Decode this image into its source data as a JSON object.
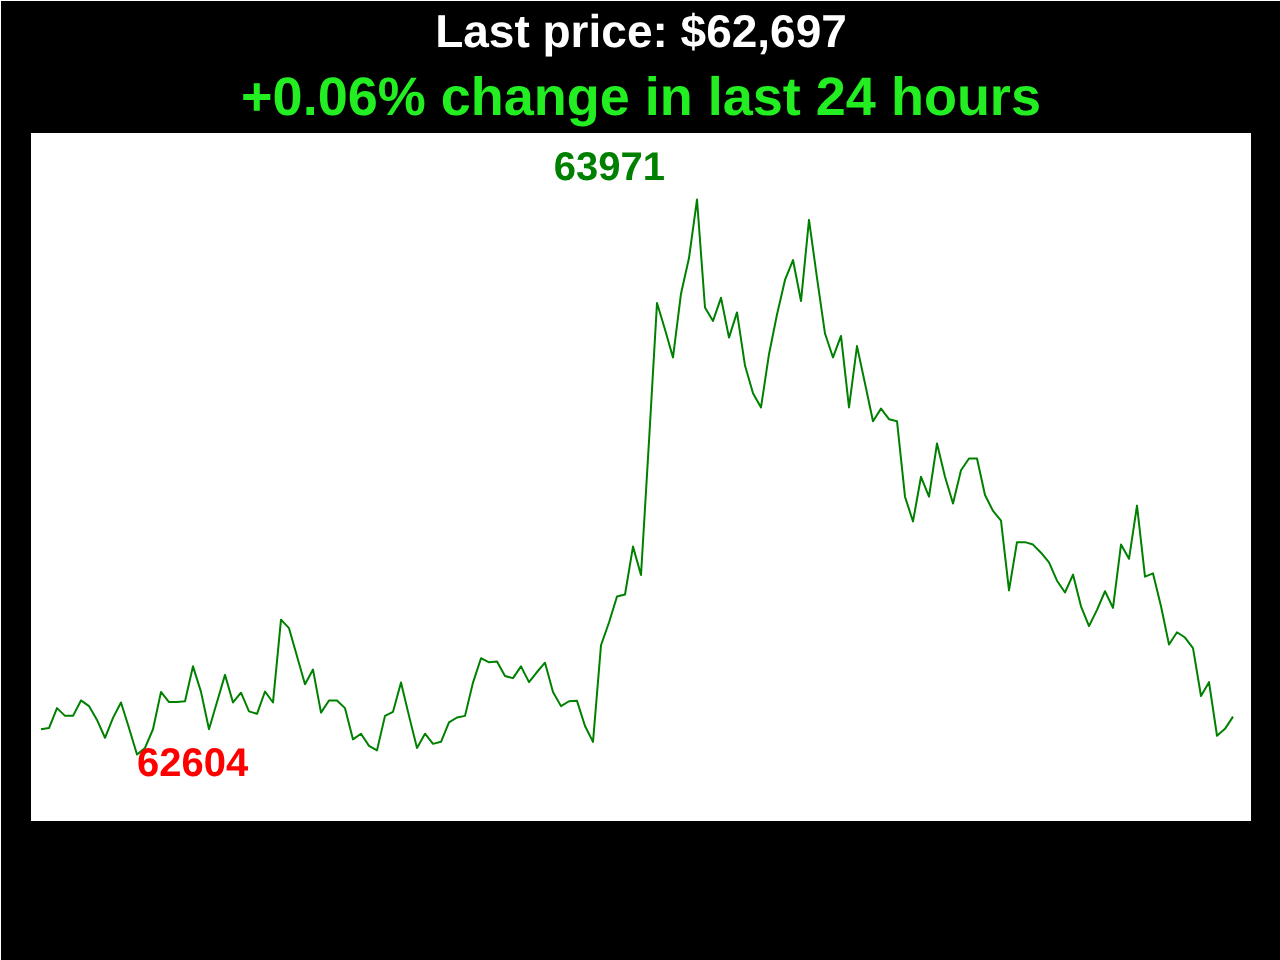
{
  "chart_data": {
    "type": "line",
    "title": "Last price: $62,697",
    "subtitle": "+0.06% change in last 24 hours",
    "categories": [
      null,
      null,
      null,
      null,
      null,
      null,
      null,
      null,
      null,
      null,
      null,
      null,
      null,
      null,
      null,
      null,
      null,
      null,
      null,
      null,
      null,
      null,
      null,
      null,
      null,
      null,
      null,
      null,
      null,
      null,
      null,
      null,
      null,
      null,
      null,
      null,
      null,
      null,
      null,
      null,
      null,
      null,
      null,
      null,
      null,
      null,
      null,
      null,
      null,
      null,
      null,
      null,
      null,
      null,
      null,
      null,
      null,
      null,
      null,
      null,
      null,
      null,
      null,
      null,
      null,
      null,
      null,
      null,
      null,
      null,
      null,
      null,
      null,
      null,
      null,
      null,
      null,
      null,
      null,
      null,
      null,
      null,
      null,
      null,
      null,
      null,
      null,
      null,
      null,
      null,
      null,
      null,
      null,
      null,
      null,
      null,
      null,
      null,
      null,
      null,
      null,
      null,
      null,
      null,
      null,
      null,
      null,
      null,
      null,
      null,
      null,
      null,
      null,
      null,
      null,
      null,
      null,
      null,
      null,
      null,
      null,
      null,
      null,
      null,
      null,
      null,
      null,
      null,
      null,
      null,
      null,
      null,
      null,
      null,
      null,
      null,
      null,
      null,
      null,
      null,
      null,
      null,
      null,
      null,
      null,
      null,
      null,
      null,
      null,
      null
    ],
    "color": "#008000",
    "values": [
      62666,
      62669,
      62718,
      62699,
      62699,
      62737,
      62723,
      62689,
      62645,
      62694,
      62732,
      62669,
      62604,
      62620,
      62666,
      62758,
      62733,
      62733,
      62735,
      62821,
      62758,
      62666,
      62733,
      62800,
      62732,
      62756,
      62710,
      62704,
      62759,
      62732,
      62936,
      62915,
      62846,
      62777,
      62813,
      62707,
      62737,
      62737,
      62718,
      62641,
      62655,
      62625,
      62614,
      62699,
      62709,
      62781,
      62699,
      62620,
      62655,
      62630,
      62635,
      62683,
      62695,
      62699,
      62781,
      62841,
      62831,
      62833,
      62797,
      62792,
      62821,
      62782,
      62807,
      62830,
      62758,
      62723,
      62735,
      62736,
      62674,
      62635,
      62873,
      62929,
      62993,
      62998,
      63116,
      63046,
      63376,
      63716,
      63651,
      63582,
      63739,
      63827,
      63971,
      63705,
      63672,
      63729,
      63631,
      63693,
      63562,
      63494,
      63459,
      63590,
      63688,
      63773,
      63822,
      63721,
      63921,
      63778,
      63641,
      63582,
      63635,
      63459,
      63610,
      63518,
      63425,
      63456,
      63430,
      63425,
      63239,
      63178,
      63288,
      63239,
      63370,
      63288,
      63222,
      63304,
      63333,
      63333,
      63243,
      63204,
      63180,
      63008,
      63127,
      63127,
      63121,
      63101,
      63077,
      63032,
      63003,
      63047,
      62969,
      62920,
      62960,
      63006,
      62965,
      63121,
      63086,
      63217,
      63042,
      63050,
      62969,
      62875,
      62905,
      62892,
      62866,
      62748,
      62782,
      62650,
      62667,
      62697
    ],
    "value_labels": [
      null,
      null,
      null,
      null,
      null,
      null,
      null,
      null,
      null,
      null,
      null,
      null,
      "62604",
      null,
      null,
      null,
      null,
      null,
      null,
      null,
      null,
      null,
      null,
      null,
      null,
      null,
      null,
      null,
      null,
      null,
      null,
      null,
      null,
      null,
      null,
      null,
      null,
      null,
      null,
      null,
      null,
      null,
      null,
      null,
      null,
      null,
      null,
      null,
      null,
      null,
      null,
      null,
      null,
      null,
      null,
      null,
      null,
      null,
      null,
      null,
      null,
      null,
      null,
      null,
      null,
      null,
      null,
      null,
      null,
      null,
      null,
      null,
      null,
      null,
      null,
      null,
      null,
      null,
      null,
      null,
      null,
      null,
      "63971",
      null,
      null,
      null,
      null,
      null,
      null,
      null,
      null,
      null,
      null,
      null,
      null,
      null,
      null,
      null,
      null,
      null,
      null,
      null,
      null,
      null,
      null,
      null,
      null,
      null,
      null,
      null,
      null,
      null,
      null,
      null,
      null,
      null,
      null,
      null,
      null,
      null,
      null,
      null,
      null,
      null,
      null,
      null,
      null,
      null,
      null,
      null,
      null,
      null,
      null,
      null,
      null,
      null,
      null,
      null,
      null,
      null,
      null,
      null,
      null,
      null,
      null,
      null,
      null,
      null,
      null,
      null
    ]
  }
}
